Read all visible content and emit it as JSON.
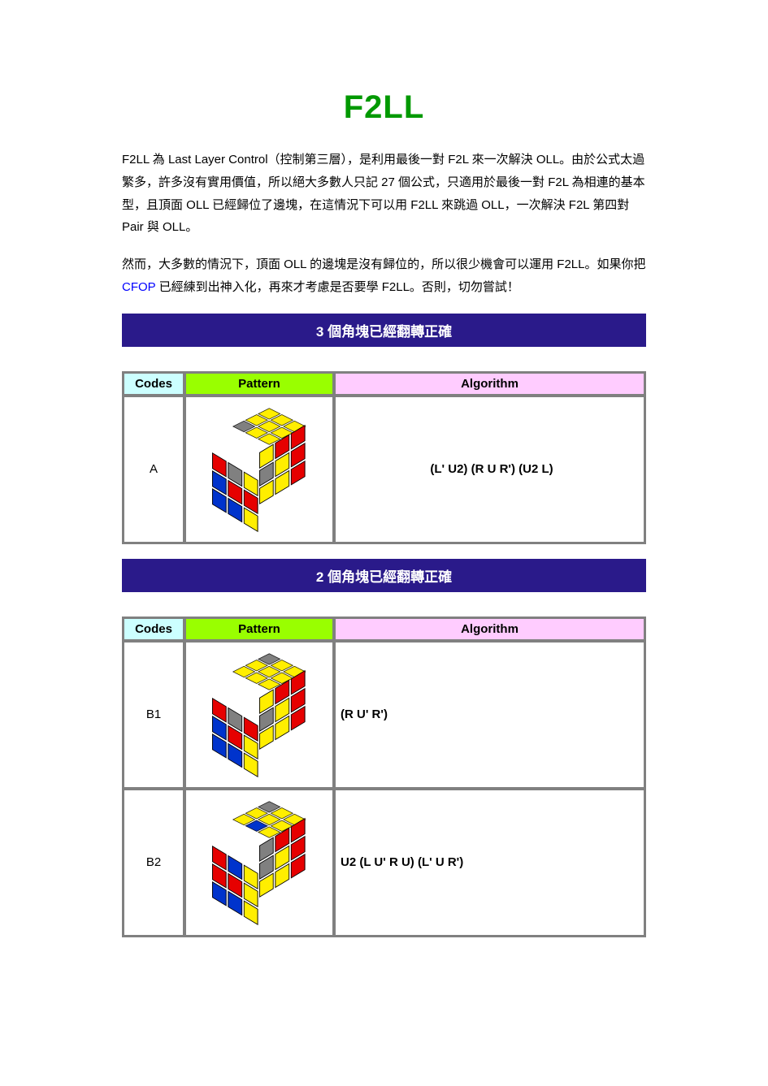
{
  "page": {
    "title": "F2LL",
    "title_color": "#009900",
    "title_fontsize": 40,
    "body_fontsize": 15,
    "intro_paragraphs": [
      "F2LL 為 Last Layer Control（控制第三層），是利用最後一對 F2L 來一次解決 OLL。由於公式太過繁多，許多沒有實用價值，所以絕大多數人只記 27 個公式，只適用於最後一對 F2L 為相連的基本型，且頂面 OLL 已經歸位了邊塊，在這情況下可以用 F2LL 來跳過 OLL，一次解決 F2L 第四對 Pair 與 OLL。",
      "然而，大多數的情況下，頂面 OLL 的邊塊是沒有歸位的，所以很少機會可以運用 F2LL。如果你把 CFOP 已經練到出神入化，再來才考慮是否要學 F2LL。否則，切勿嘗試！"
    ],
    "cfop_link_text": "CFOP",
    "cfop_link_color": "#0000ff"
  },
  "section_bar": {
    "background_color": "#2a1a8a",
    "text_color": "#ffffff",
    "fontsize": 17
  },
  "table_headers": {
    "codes": "Codes",
    "pattern": "Pattern",
    "algorithm": "Algorithm",
    "codes_bg": "#ccffff",
    "pattern_bg": "#99ff00",
    "algorithm_bg": "#ffccff",
    "border_color": "#808080"
  },
  "sticker_colors": {
    "Y": "#ffee00",
    "R": "#e60000",
    "B": "#0033cc",
    "G": "#808080",
    "W": "#ffffff"
  },
  "sections": [
    {
      "heading": "3 個角塊已經翻轉正確",
      "rows": [
        {
          "code": "A",
          "algorithm": "(L' U2) (R U R') (U2 L)",
          "alg_align": "center",
          "cube": {
            "top": [
              "G",
              "Y",
              "Y",
              "Y",
              "Y",
              "Y",
              "Y",
              "Y",
              "Y"
            ],
            "front": [
              "R",
              "G",
              "Y",
              "B",
              "R",
              "R",
              "B",
              "B",
              "Y"
            ],
            "right": [
              "Y",
              "R",
              "R",
              "G",
              "Y",
              "R",
              "Y",
              "Y",
              "R"
            ]
          }
        }
      ]
    },
    {
      "heading": "2 個角塊已經翻轉正確",
      "rows": [
        {
          "code": "B1",
          "algorithm": "(R U' R')",
          "alg_align": "left",
          "cube": {
            "top": [
              "Y",
              "Y",
              "G",
              "Y",
              "Y",
              "Y",
              "Y",
              "Y",
              "Y"
            ],
            "front": [
              "R",
              "G",
              "R",
              "B",
              "R",
              "Y",
              "B",
              "B",
              "Y"
            ],
            "right": [
              "Y",
              "R",
              "R",
              "G",
              "Y",
              "R",
              "Y",
              "Y",
              "R"
            ]
          }
        },
        {
          "code": "B2",
          "algorithm": "U2 (L U' R U) (L' U R')",
          "alg_align": "left",
          "cube": {
            "top": [
              "Y",
              "Y",
              "G",
              "B",
              "Y",
              "Y",
              "Y",
              "Y",
              "Y"
            ],
            "front": [
              "R",
              "B",
              "Y",
              "R",
              "R",
              "Y",
              "B",
              "B",
              "Y"
            ],
            "right": [
              "G",
              "R",
              "R",
              "G",
              "Y",
              "R",
              "Y",
              "Y",
              "R"
            ]
          }
        }
      ]
    }
  ]
}
